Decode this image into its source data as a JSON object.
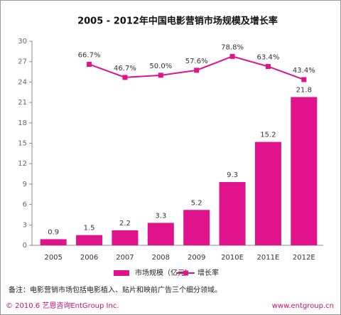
{
  "chart_data": {
    "type": "bar",
    "title": "2005 - 2012年中国电影营销市场规模及增长率",
    "categories": [
      "2005",
      "2006",
      "2007",
      "2008",
      "2009",
      "2010E",
      "2011E",
      "2012E"
    ],
    "series": [
      {
        "name": "市场规模（亿元）",
        "type": "bar",
        "color": "#e0138c",
        "values": [
          0.9,
          1.5,
          2.2,
          3.3,
          5.2,
          9.3,
          15.2,
          21.8
        ]
      },
      {
        "name": "增长率",
        "type": "line",
        "axis": "y2",
        "color": "#e0138c",
        "values": [
          null,
          66.7,
          46.7,
          50.0,
          57.6,
          78.8,
          63.4,
          43.4
        ],
        "value_labels": [
          null,
          "66.7%",
          "46.7%",
          "50.0%",
          "57.6%",
          "78.8%",
          "63.4%",
          "43.4%"
        ]
      }
    ],
    "ylim": [
      0,
      30
    ],
    "yticks": [
      0,
      3,
      6,
      9,
      12,
      15,
      18,
      21,
      24,
      27,
      30
    ],
    "y2lim": [
      -210,
      102
    ],
    "grid": false,
    "legend": "bottom",
    "note": "备注：电影营销市场包括电影植入、贴片和映前广告三个细分领域。",
    "source": "© 2010.6 艺恩咨询EntGroup Inc.",
    "website": "www.entgroup.cn"
  }
}
